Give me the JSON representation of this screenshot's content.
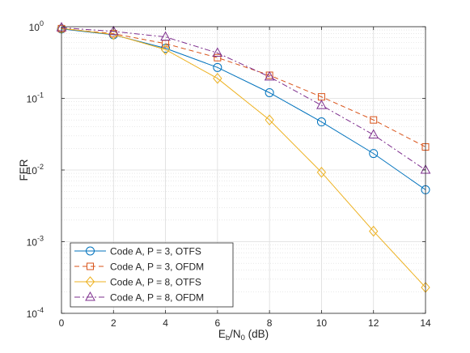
{
  "chart_data": {
    "type": "line",
    "xlabel": {
      "base": "E",
      "sub1": "b",
      "mid": "/N",
      "sub2": "0",
      "tail": " (dB)"
    },
    "ylabel": "FER",
    "xlim": [
      0,
      14
    ],
    "ylim": [
      0.0001,
      1
    ],
    "y_scale": "log",
    "x_ticks": [
      0,
      2,
      4,
      6,
      8,
      10,
      12,
      14
    ],
    "x_tick_labels": [
      "0",
      "2",
      "4",
      "6",
      "8",
      "10",
      "12",
      "14"
    ],
    "y_ticks": [
      {
        "value": 1,
        "base": "10",
        "exp": "0"
      },
      {
        "value": 0.1,
        "base": "10",
        "exp": "-1"
      },
      {
        "value": 0.01,
        "base": "10",
        "exp": "-2"
      },
      {
        "value": 0.001,
        "base": "10",
        "exp": "-3"
      },
      {
        "value": 0.0001,
        "base": "10",
        "exp": "-4"
      }
    ],
    "grid": true,
    "minor_grid": true,
    "legend_position": "bottom-left",
    "series": [
      {
        "name": "Code A, P = 3, OTFS",
        "color": "#0072bd",
        "dash": "solid",
        "marker": "circle",
        "x": [
          0,
          2,
          4,
          6,
          8,
          10,
          12,
          14
        ],
        "y": [
          0.93,
          0.77,
          0.5,
          0.27,
          0.12,
          0.047,
          0.017,
          0.0053
        ]
      },
      {
        "name": "Code A, P = 3, OFDM",
        "color": "#d95319",
        "dash": "dashed",
        "marker": "square",
        "x": [
          0,
          2,
          4,
          6,
          8,
          10,
          12,
          14
        ],
        "y": [
          0.94,
          0.8,
          0.58,
          0.37,
          0.21,
          0.105,
          0.05,
          0.021
        ]
      },
      {
        "name": "Code A, P = 8, OTFS",
        "color": "#edb120",
        "dash": "solid",
        "marker": "diamond",
        "x": [
          0,
          2,
          4,
          6,
          8,
          10,
          12,
          14
        ],
        "y": [
          0.95,
          0.78,
          0.48,
          0.19,
          0.05,
          0.0093,
          0.0014,
          0.00023
        ]
      },
      {
        "name": "Code A, P = 8, OFDM",
        "color": "#7e2f8e",
        "dash": "dashdot",
        "marker": "triangle",
        "x": [
          0,
          2,
          4,
          6,
          8,
          10,
          12,
          14
        ],
        "y": [
          0.97,
          0.86,
          0.72,
          0.43,
          0.2,
          0.08,
          0.031,
          0.01
        ]
      }
    ]
  }
}
